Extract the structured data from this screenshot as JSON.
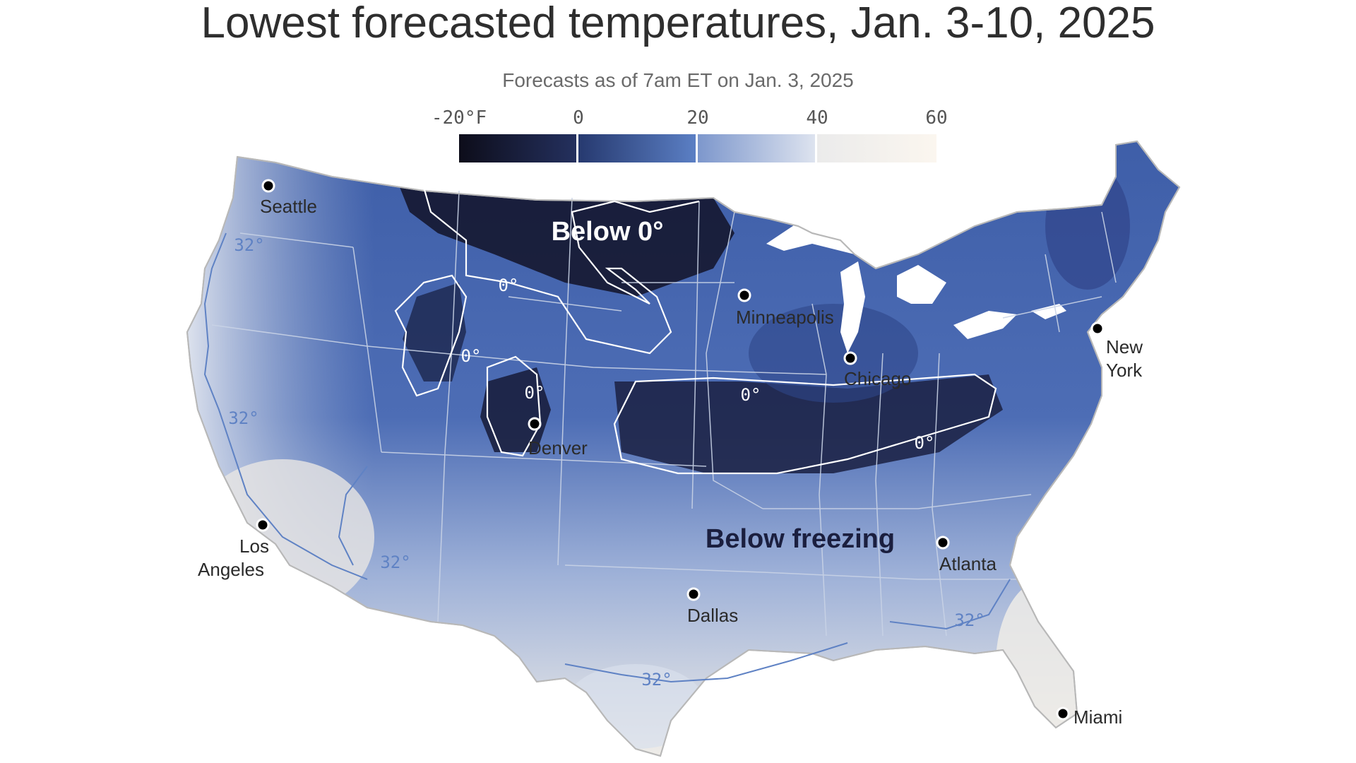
{
  "title": "Lowest forecasted temperatures,  Jan. 3-10, 2025",
  "subtitle": "Forecasts as of 7am ET on Jan. 3, 2025",
  "legend": {
    "ticks": [
      "-20°F",
      "0",
      "20",
      "40",
      "60"
    ],
    "bins": [
      {
        "from": "#0d0d1a",
        "to": "#24305e"
      },
      {
        "from": "#26396f",
        "to": "#5b7fc4"
      },
      {
        "from": "#7d97cc",
        "to": "#dde3ef"
      },
      {
        "from": "#ebebeb",
        "to": "#fbf6ef"
      }
    ]
  },
  "regions": {
    "below_zero": "Below 0°",
    "below_freezing": "Below freezing"
  },
  "contours": {
    "zero": "0°",
    "freezing": "32°"
  },
  "cities": [
    {
      "name": "Seattle",
      "line2": ""
    },
    {
      "name": "Los",
      "line2": "Angeles"
    },
    {
      "name": "Denver",
      "line2": ""
    },
    {
      "name": "Minneapolis",
      "line2": ""
    },
    {
      "name": "Chicago",
      "line2": ""
    },
    {
      "name": "Dallas",
      "line2": ""
    },
    {
      "name": "Atlanta",
      "line2": ""
    },
    {
      "name": "New",
      "line2": "York"
    },
    {
      "name": "Miami",
      "line2": ""
    }
  ],
  "colors": {
    "contour_zero": "#ffffff",
    "contour_freezing": "#5f82c4",
    "state_border": "#c9d3e6",
    "coast": "#b8b8b8"
  }
}
